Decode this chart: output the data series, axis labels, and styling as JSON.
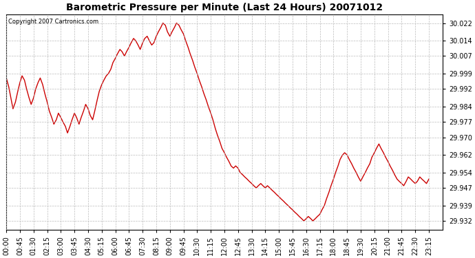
{
  "title": "Barometric Pressure per Minute (Last 24 Hours) 20071012",
  "copyright": "Copyright 2007 Cartronics.com",
  "line_color": "#cc0000",
  "background_color": "#ffffff",
  "grid_color": "#bbbbbb",
  "yticks": [
    29.932,
    29.939,
    29.947,
    29.954,
    29.962,
    29.97,
    29.977,
    29.984,
    29.992,
    29.999,
    30.007,
    30.014,
    30.022
  ],
  "ylim": [
    29.928,
    30.026
  ],
  "xtick_labels": [
    "00:00",
    "00:45",
    "01:30",
    "02:15",
    "03:00",
    "03:45",
    "04:30",
    "05:15",
    "06:00",
    "06:45",
    "07:30",
    "08:15",
    "09:00",
    "09:45",
    "10:30",
    "11:15",
    "12:00",
    "12:45",
    "13:30",
    "14:15",
    "15:00",
    "15:45",
    "16:30",
    "17:15",
    "18:00",
    "18:45",
    "19:30",
    "20:15",
    "21:00",
    "21:45",
    "22:30",
    "23:15"
  ],
  "time_values": [
    0,
    45,
    90,
    135,
    180,
    225,
    270,
    315,
    360,
    405,
    450,
    495,
    540,
    585,
    630,
    675,
    720,
    765,
    810,
    855,
    900,
    945,
    990,
    1035,
    1080,
    1125,
    1170,
    1215,
    1260,
    1305,
    1350,
    1395
  ],
  "pressure_data": [
    [
      0,
      29.997
    ],
    [
      8,
      29.993
    ],
    [
      15,
      29.988
    ],
    [
      22,
      29.983
    ],
    [
      30,
      29.986
    ],
    [
      38,
      29.991
    ],
    [
      45,
      29.995
    ],
    [
      52,
      29.998
    ],
    [
      60,
      29.996
    ],
    [
      67,
      29.992
    ],
    [
      75,
      29.988
    ],
    [
      82,
      29.985
    ],
    [
      90,
      29.988
    ],
    [
      97,
      29.992
    ],
    [
      105,
      29.995
    ],
    [
      112,
      29.997
    ],
    [
      120,
      29.994
    ],
    [
      127,
      29.99
    ],
    [
      135,
      29.986
    ],
    [
      142,
      29.982
    ],
    [
      150,
      29.979
    ],
    [
      157,
      29.976
    ],
    [
      165,
      29.978
    ],
    [
      172,
      29.981
    ],
    [
      180,
      29.979
    ],
    [
      187,
      29.977
    ],
    [
      195,
      29.975
    ],
    [
      202,
      29.972
    ],
    [
      210,
      29.975
    ],
    [
      217,
      29.978
    ],
    [
      225,
      29.981
    ],
    [
      232,
      29.979
    ],
    [
      240,
      29.976
    ],
    [
      247,
      29.979
    ],
    [
      255,
      29.982
    ],
    [
      262,
      29.985
    ],
    [
      270,
      29.983
    ],
    [
      277,
      29.98
    ],
    [
      285,
      29.978
    ],
    [
      292,
      29.982
    ],
    [
      300,
      29.987
    ],
    [
      307,
      29.991
    ],
    [
      315,
      29.994
    ],
    [
      322,
      29.996
    ],
    [
      330,
      29.998
    ],
    [
      337,
      29.999
    ],
    [
      345,
      30.001
    ],
    [
      352,
      30.004
    ],
    [
      360,
      30.006
    ],
    [
      367,
      30.008
    ],
    [
      375,
      30.01
    ],
    [
      382,
      30.009
    ],
    [
      390,
      30.007
    ],
    [
      397,
      30.009
    ],
    [
      405,
      30.011
    ],
    [
      412,
      30.013
    ],
    [
      420,
      30.015
    ],
    [
      427,
      30.014
    ],
    [
      435,
      30.012
    ],
    [
      442,
      30.01
    ],
    [
      450,
      30.013
    ],
    [
      457,
      30.015
    ],
    [
      465,
      30.016
    ],
    [
      472,
      30.014
    ],
    [
      480,
      30.012
    ],
    [
      487,
      30.013
    ],
    [
      495,
      30.016
    ],
    [
      502,
      30.018
    ],
    [
      510,
      30.02
    ],
    [
      517,
      30.022
    ],
    [
      525,
      30.021
    ],
    [
      532,
      30.018
    ],
    [
      540,
      30.016
    ],
    [
      547,
      30.018
    ],
    [
      555,
      30.02
    ],
    [
      562,
      30.022
    ],
    [
      570,
      30.021
    ],
    [
      577,
      30.019
    ],
    [
      585,
      30.017
    ],
    [
      592,
      30.014
    ],
    [
      600,
      30.011
    ],
    [
      607,
      30.008
    ],
    [
      615,
      30.005
    ],
    [
      622,
      30.002
    ],
    [
      630,
      29.999
    ],
    [
      637,
      29.996
    ],
    [
      645,
      29.993
    ],
    [
      652,
      29.99
    ],
    [
      660,
      29.987
    ],
    [
      667,
      29.984
    ],
    [
      675,
      29.981
    ],
    [
      682,
      29.978
    ],
    [
      690,
      29.974
    ],
    [
      697,
      29.971
    ],
    [
      705,
      29.968
    ],
    [
      712,
      29.965
    ],
    [
      720,
      29.963
    ],
    [
      727,
      29.961
    ],
    [
      735,
      29.959
    ],
    [
      742,
      29.957
    ],
    [
      750,
      29.956
    ],
    [
      757,
      29.957
    ],
    [
      765,
      29.956
    ],
    [
      772,
      29.954
    ],
    [
      780,
      29.953
    ],
    [
      787,
      29.952
    ],
    [
      795,
      29.951
    ],
    [
      802,
      29.95
    ],
    [
      810,
      29.949
    ],
    [
      817,
      29.948
    ],
    [
      825,
      29.947
    ],
    [
      832,
      29.948
    ],
    [
      840,
      29.949
    ],
    [
      847,
      29.948
    ],
    [
      855,
      29.947
    ],
    [
      862,
      29.948
    ],
    [
      870,
      29.947
    ],
    [
      877,
      29.946
    ],
    [
      885,
      29.945
    ],
    [
      892,
      29.944
    ],
    [
      900,
      29.943
    ],
    [
      907,
      29.942
    ],
    [
      915,
      29.941
    ],
    [
      922,
      29.94
    ],
    [
      930,
      29.939
    ],
    [
      937,
      29.938
    ],
    [
      945,
      29.937
    ],
    [
      952,
      29.936
    ],
    [
      960,
      29.935
    ],
    [
      967,
      29.934
    ],
    [
      975,
      29.933
    ],
    [
      982,
      29.932
    ],
    [
      990,
      29.933
    ],
    [
      997,
      29.934
    ],
    [
      1005,
      29.933
    ],
    [
      1012,
      29.932
    ],
    [
      1020,
      29.933
    ],
    [
      1027,
      29.934
    ],
    [
      1035,
      29.935
    ],
    [
      1042,
      29.937
    ],
    [
      1050,
      29.939
    ],
    [
      1057,
      29.942
    ],
    [
      1065,
      29.945
    ],
    [
      1072,
      29.948
    ],
    [
      1080,
      29.951
    ],
    [
      1087,
      29.954
    ],
    [
      1095,
      29.957
    ],
    [
      1102,
      29.96
    ],
    [
      1110,
      29.962
    ],
    [
      1117,
      29.963
    ],
    [
      1125,
      29.962
    ],
    [
      1132,
      29.96
    ],
    [
      1140,
      29.958
    ],
    [
      1147,
      29.956
    ],
    [
      1155,
      29.954
    ],
    [
      1162,
      29.952
    ],
    [
      1170,
      29.95
    ],
    [
      1177,
      29.952
    ],
    [
      1185,
      29.954
    ],
    [
      1192,
      29.956
    ],
    [
      1200,
      29.958
    ],
    [
      1207,
      29.961
    ],
    [
      1215,
      29.963
    ],
    [
      1222,
      29.965
    ],
    [
      1230,
      29.967
    ],
    [
      1237,
      29.965
    ],
    [
      1245,
      29.963
    ],
    [
      1252,
      29.961
    ],
    [
      1260,
      29.959
    ],
    [
      1267,
      29.957
    ],
    [
      1275,
      29.955
    ],
    [
      1282,
      29.953
    ],
    [
      1290,
      29.951
    ],
    [
      1297,
      29.95
    ],
    [
      1305,
      29.949
    ],
    [
      1312,
      29.948
    ],
    [
      1320,
      29.95
    ],
    [
      1327,
      29.952
    ],
    [
      1335,
      29.951
    ],
    [
      1342,
      29.95
    ],
    [
      1350,
      29.949
    ],
    [
      1357,
      29.95
    ],
    [
      1365,
      29.952
    ],
    [
      1372,
      29.951
    ],
    [
      1380,
      29.95
    ],
    [
      1387,
      29.949
    ],
    [
      1395,
      29.951
    ]
  ]
}
